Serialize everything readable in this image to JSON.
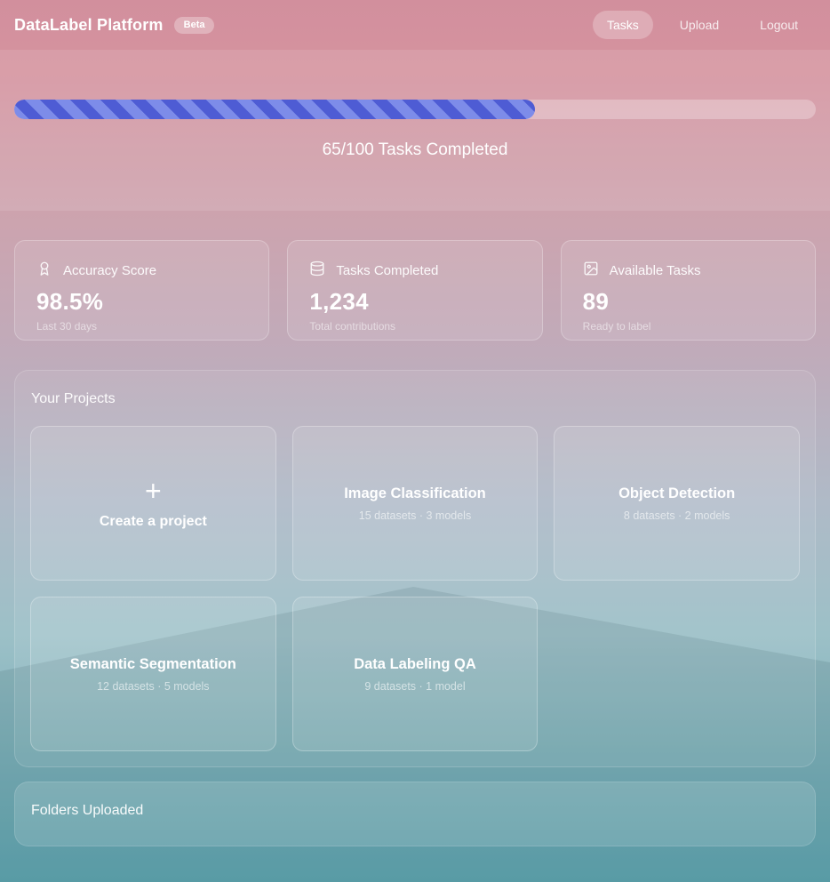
{
  "header": {
    "title": "DataLabel Platform",
    "badge": "Beta",
    "nav": [
      {
        "label": "Tasks",
        "active": true
      },
      {
        "label": "Upload",
        "active": false
      },
      {
        "label": "Logout",
        "active": false
      }
    ]
  },
  "hero": {
    "progress_percent": 65,
    "progress_label": "65/100 Tasks Completed"
  },
  "stats": [
    {
      "icon": "award-icon",
      "label": "Accuracy Score",
      "value": "98.5%",
      "caption": "Last 30 days"
    },
    {
      "icon": "database-icon",
      "label": "Tasks Completed",
      "value": "1,234",
      "caption": "Total contributions"
    },
    {
      "icon": "image-icon",
      "label": "Available Tasks",
      "value": "89",
      "caption": "Ready to label"
    }
  ],
  "projects": {
    "title": "Your Projects",
    "create_card": {
      "plus": "+",
      "label": "Create a project"
    },
    "cards": [
      {
        "title": "Image Classification",
        "meta": "15 datasets · 3 models"
      },
      {
        "title": "Object Detection",
        "meta": "8 datasets · 2 models"
      },
      {
        "title": "Semantic Segmentation",
        "meta": "12 datasets · 5 models"
      },
      {
        "title": "Data Labeling QA",
        "meta": "9 datasets · 1 model"
      }
    ]
  },
  "folders": {
    "title": "Folders Uploaded"
  },
  "colors": {
    "progress_stripe_light": "#7d8ce9",
    "progress_stripe_dark": "#4e5cd4",
    "bg_top": "#d28f9d",
    "bg_bottom": "#5fa7b2"
  }
}
